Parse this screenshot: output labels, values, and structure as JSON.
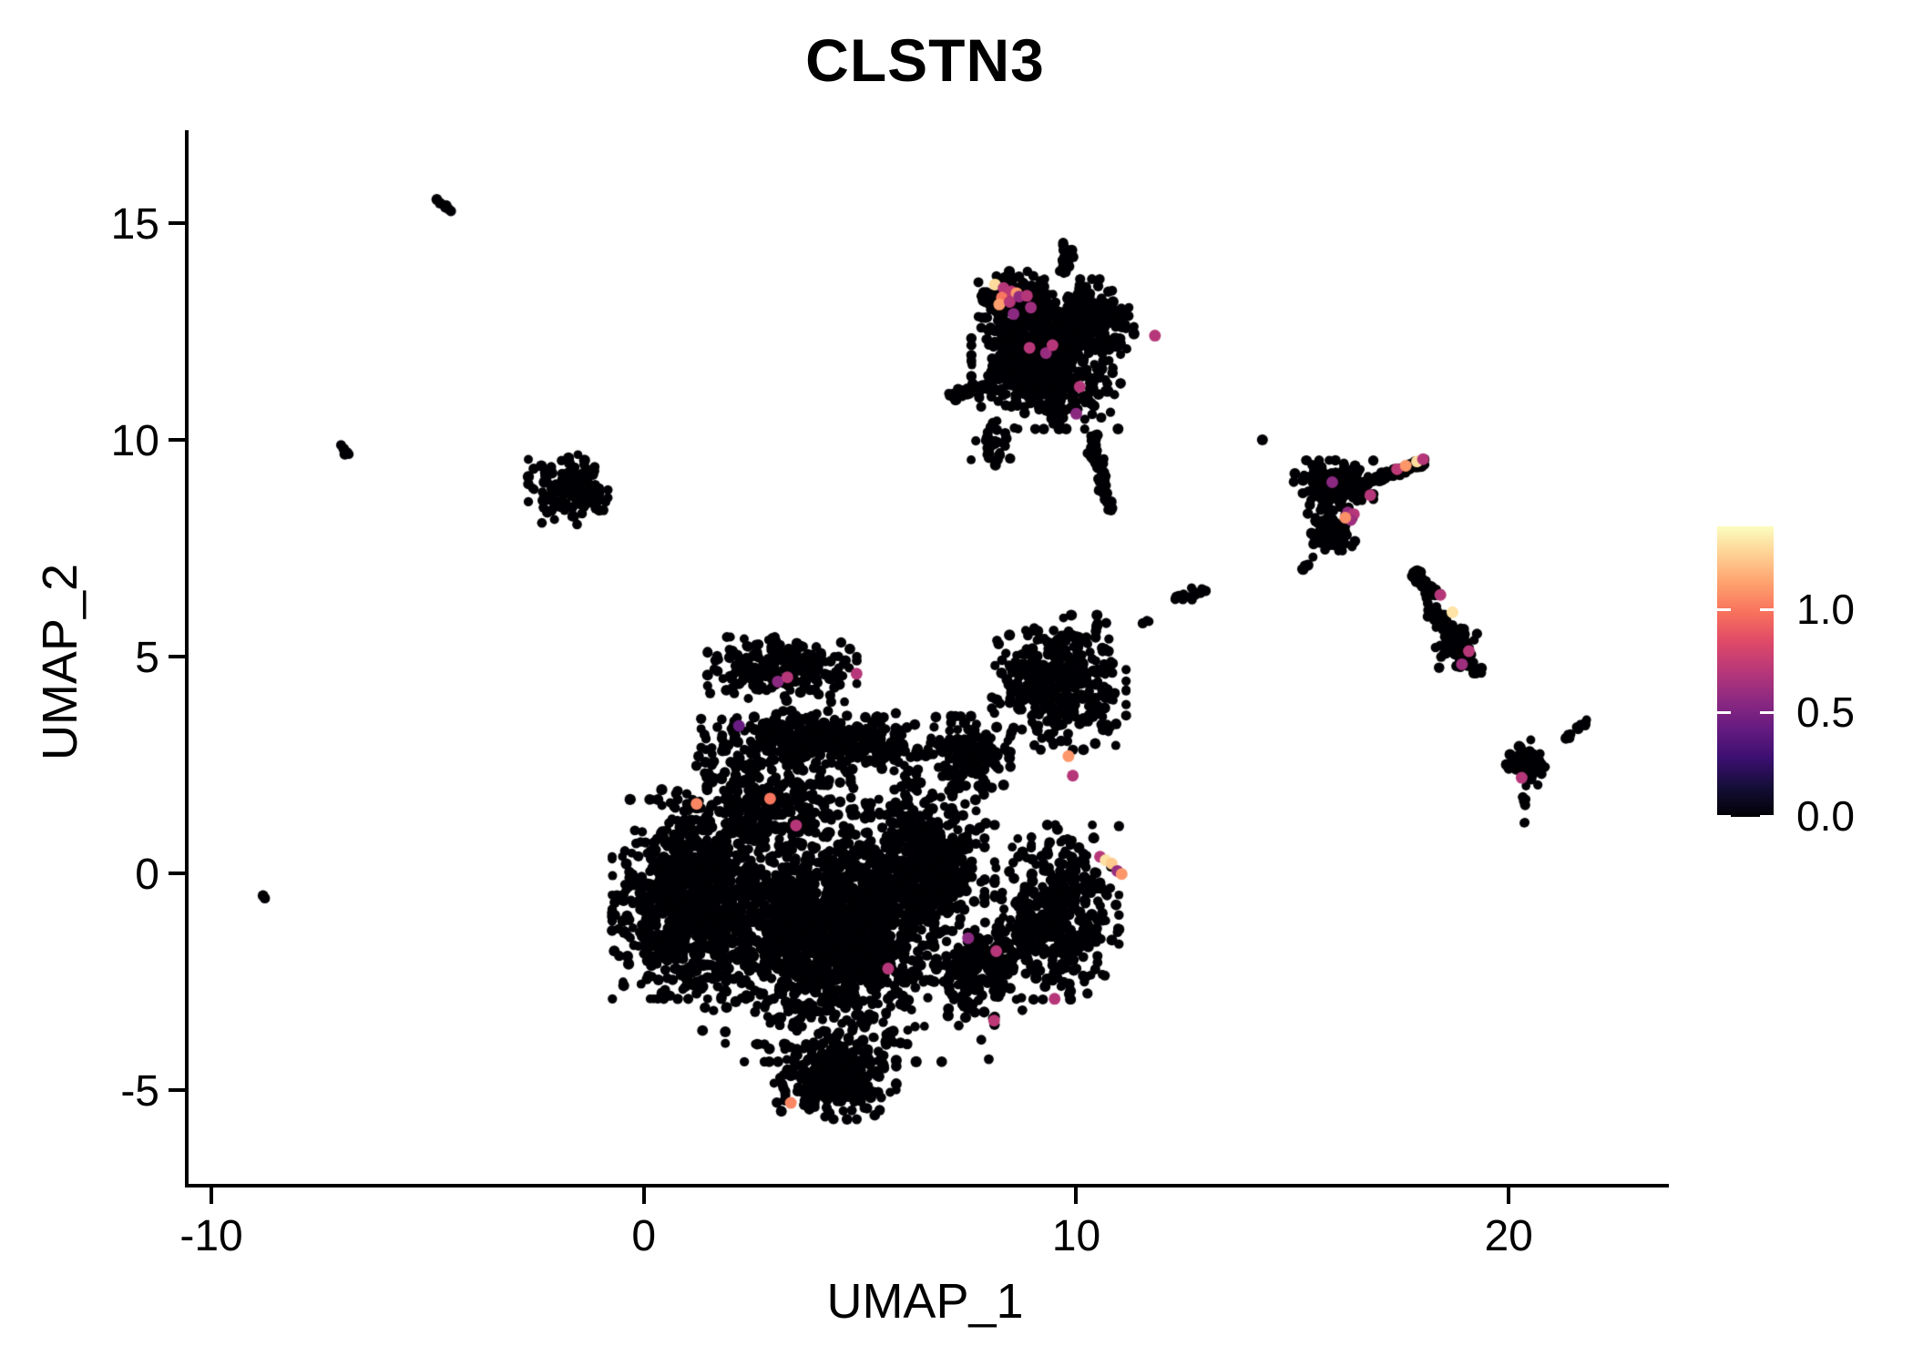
{
  "chart_data": {
    "type": "scatter",
    "title": "CLSTN3",
    "xlabel": "UMAP_1",
    "ylabel": "UMAP_2",
    "xlim": [
      -10.57,
      23.62
    ],
    "ylim": [
      -7.21,
      17.14
    ],
    "x_ticks": [
      {
        "value": -10,
        "label": "-10"
      },
      {
        "value": 0,
        "label": "0"
      },
      {
        "value": 10,
        "label": "10"
      },
      {
        "value": 20,
        "label": "20"
      }
    ],
    "y_ticks": [
      {
        "value": -5,
        "label": "-5"
      },
      {
        "value": 0,
        "label": "0"
      },
      {
        "value": 5,
        "label": "5"
      },
      {
        "value": 10,
        "label": "10"
      },
      {
        "value": 15,
        "label": "15"
      }
    ],
    "grid": false,
    "legend_position": "right",
    "point_color": "#000004",
    "point_radius_px": 5.5,
    "highlight_radius_px": 6.5,
    "colorbar": {
      "vmin": 0.0,
      "vmax": 1.405,
      "tick_values": [
        0.0,
        0.5,
        1.0
      ],
      "tick_labels": [
        "0.0",
        "0.5",
        "1.0"
      ],
      "colormap": "magma",
      "stops": [
        [
          0.0,
          "#000004"
        ],
        [
          0.1,
          "#140e36"
        ],
        [
          0.2,
          "#3b0f70"
        ],
        [
          0.3,
          "#641a80"
        ],
        [
          0.4,
          "#8c2981"
        ],
        [
          0.5,
          "#b73779"
        ],
        [
          0.6,
          "#de4968"
        ],
        [
          0.7,
          "#f7705c"
        ],
        [
          0.8,
          "#fe9f6d"
        ],
        [
          0.9,
          "#fecf92"
        ],
        [
          1.0,
          "#fcfdbf"
        ]
      ]
    },
    "seed": 20,
    "clusters": [
      {
        "t": "g",
        "name": "central-hat",
        "x": 3.2,
        "y": 4.7,
        "rx": 1.5,
        "ry": 0.65,
        "n": 240
      },
      {
        "t": "g",
        "name": "central-band",
        "x": 4.2,
        "y": 3.05,
        "rx": 2.5,
        "ry": 0.6,
        "n": 430
      },
      {
        "t": "g",
        "name": "central-left-lobe",
        "x": 1.05,
        "y": -0.6,
        "rx": 1.55,
        "ry": 2.0,
        "n": 850
      },
      {
        "t": "g",
        "name": "central-core",
        "x": 4.3,
        "y": -1.3,
        "rx": 2.1,
        "ry": 2.3,
        "n": 1150
      },
      {
        "t": "g",
        "name": "central-bottom-tail",
        "x": 4.4,
        "y": -4.7,
        "rx": 1.25,
        "ry": 0.85,
        "n": 280
      },
      {
        "t": "g",
        "name": "central-right-strip",
        "x": 6.5,
        "y": 0.2,
        "rx": 1.2,
        "ry": 1.9,
        "n": 520
      },
      {
        "t": "g",
        "name": "central-mid-fill",
        "x": 2.6,
        "y": 1.7,
        "rx": 1.9,
        "ry": 1.0,
        "n": 250
      },
      {
        "t": "g",
        "name": "right-ear",
        "x": 9.55,
        "y": -0.9,
        "rx": 1.25,
        "ry": 1.75,
        "n": 430
      },
      {
        "t": "g",
        "name": "ear-bridge",
        "x": 7.8,
        "y": -2.2,
        "rx": 0.9,
        "ry": 1.0,
        "n": 200
      },
      {
        "t": "g",
        "name": "upper-right-lobe",
        "x": 9.6,
        "y": 4.4,
        "rx": 1.35,
        "ry": 1.35,
        "n": 400
      },
      {
        "t": "g",
        "name": "neck",
        "x": 7.5,
        "y": 2.7,
        "rx": 0.85,
        "ry": 0.8,
        "n": 150
      },
      {
        "t": "g",
        "name": "central-sparse-halo",
        "x": 4.2,
        "y": -0.9,
        "rx": 3.4,
        "ry": 3.0,
        "n": 420
      },
      {
        "t": "l",
        "name": "mid-streak",
        "x": 12.15,
        "y": 6.2,
        "x2": 13.0,
        "y2": 6.6,
        "w": 0.12,
        "n": 16
      },
      {
        "t": "g",
        "name": "mid-dots",
        "x": 11.6,
        "y": 5.8,
        "rx": 0.15,
        "ry": 0.15,
        "n": 3
      },
      {
        "t": "g",
        "name": "top-cluster-main",
        "x": 9.3,
        "y": 11.8,
        "rx": 1.5,
        "ry": 1.35,
        "n": 640
      },
      {
        "t": "g",
        "name": "top-cluster-left-wing",
        "x": 8.6,
        "y": 13.25,
        "rx": 0.75,
        "ry": 0.55,
        "n": 170
      },
      {
        "t": "g",
        "name": "top-cluster-right",
        "x": 10.3,
        "y": 12.9,
        "rx": 0.9,
        "ry": 0.7,
        "n": 180
      },
      {
        "t": "l",
        "name": "top-cluster-hat",
        "x": 9.7,
        "y": 13.9,
        "x2": 9.8,
        "y2": 14.55,
        "w": 0.15,
        "n": 26
      },
      {
        "t": "l",
        "name": "top-cluster-left-trail",
        "x": 7.1,
        "y": 10.95,
        "x2": 8.35,
        "y2": 11.55,
        "w": 0.15,
        "n": 55
      },
      {
        "t": "l",
        "name": "top-cluster-bottom-tail",
        "x": 10.35,
        "y": 10.1,
        "x2": 10.8,
        "y2": 8.35,
        "w": 0.14,
        "n": 60
      },
      {
        "t": "g",
        "name": "top-cluster-sparse",
        "x": 8.1,
        "y": 9.9,
        "rx": 0.5,
        "ry": 0.5,
        "n": 30
      },
      {
        "t": "g",
        "name": "left-cluster",
        "x": -1.75,
        "y": 8.85,
        "rx": 0.8,
        "ry": 0.7,
        "n": 150
      },
      {
        "t": "l",
        "name": "left-dots",
        "x": -7.0,
        "y": 9.85,
        "x2": -6.7,
        "y2": 9.5,
        "w": 0.08,
        "n": 5
      },
      {
        "t": "l",
        "name": "topleft-streak",
        "x": -4.9,
        "y": 15.6,
        "x2": -4.45,
        "y2": 15.25,
        "w": 0.08,
        "n": 7
      },
      {
        "t": "g",
        "name": "left-outlier",
        "x": -8.8,
        "y": -0.55,
        "rx": 0.05,
        "ry": 0.05,
        "n": 2
      },
      {
        "t": "g",
        "name": "far-outlier",
        "x": 14.3,
        "y": 10.0,
        "rx": 0.03,
        "ry": 0.03,
        "n": 1
      },
      {
        "t": "g",
        "name": "right-A-main",
        "x": 15.95,
        "y": 8.95,
        "rx": 0.8,
        "ry": 0.5,
        "n": 190
      },
      {
        "t": "l",
        "name": "right-A-arm",
        "x": 16.9,
        "y": 9.05,
        "x2": 18.05,
        "y2": 9.5,
        "w": 0.12,
        "n": 55
      },
      {
        "t": "g",
        "name": "right-A-lower",
        "x": 15.85,
        "y": 7.95,
        "rx": 0.6,
        "ry": 0.45,
        "n": 70
      },
      {
        "t": "l",
        "name": "right-A-drip",
        "x": 15.45,
        "y": 7.3,
        "x2": 15.2,
        "y2": 6.9,
        "w": 0.08,
        "n": 6
      },
      {
        "t": "l",
        "name": "right-B-snake-1",
        "x": 17.75,
        "y": 6.95,
        "x2": 18.35,
        "y2": 6.4,
        "w": 0.18,
        "n": 45
      },
      {
        "t": "l",
        "name": "right-B-snake-2",
        "x": 18.2,
        "y": 6.1,
        "x2": 18.6,
        "y2": 5.6,
        "w": 0.2,
        "n": 50
      },
      {
        "t": "g",
        "name": "right-B-blob",
        "x": 18.75,
        "y": 5.25,
        "rx": 0.45,
        "ry": 0.5,
        "n": 90
      },
      {
        "t": "l",
        "name": "right-B-tip",
        "x": 19.0,
        "y": 4.9,
        "x2": 19.35,
        "y2": 4.6,
        "w": 0.12,
        "n": 18
      },
      {
        "t": "g",
        "name": "right-C-blob",
        "x": 20.4,
        "y": 2.5,
        "rx": 0.42,
        "ry": 0.5,
        "n": 60
      },
      {
        "t": "l",
        "name": "right-C-streak",
        "x": 21.3,
        "y": 3.1,
        "x2": 21.8,
        "y2": 3.5,
        "w": 0.07,
        "n": 11
      },
      {
        "t": "l",
        "name": "right-C-drip",
        "x": 20.32,
        "y": 2.0,
        "x2": 20.38,
        "y2": 1.15,
        "w": 0.05,
        "n": 8
      }
    ],
    "highlights": [
      {
        "x": 8.12,
        "y": 13.58,
        "v": 1.3
      },
      {
        "x": 8.32,
        "y": 13.5,
        "v": 0.7
      },
      {
        "x": 8.5,
        "y": 13.42,
        "v": 0.72
      },
      {
        "x": 8.62,
        "y": 13.38,
        "v": 1.1
      },
      {
        "x": 8.28,
        "y": 13.28,
        "v": 1.0
      },
      {
        "x": 8.22,
        "y": 13.12,
        "v": 1.12
      },
      {
        "x": 8.46,
        "y": 13.18,
        "v": 0.7
      },
      {
        "x": 8.68,
        "y": 13.3,
        "v": 0.58
      },
      {
        "x": 8.86,
        "y": 13.32,
        "v": 0.7
      },
      {
        "x": 8.55,
        "y": 12.9,
        "v": 0.56
      },
      {
        "x": 8.95,
        "y": 13.05,
        "v": 0.62
      },
      {
        "x": 8.92,
        "y": 12.12,
        "v": 0.7
      },
      {
        "x": 9.3,
        "y": 12.0,
        "v": 0.6
      },
      {
        "x": 9.45,
        "y": 12.18,
        "v": 0.7
      },
      {
        "x": 10.08,
        "y": 11.22,
        "v": 0.7
      },
      {
        "x": 10.0,
        "y": 10.6,
        "v": 0.56
      },
      {
        "x": 11.82,
        "y": 12.4,
        "v": 0.7
      },
      {
        "x": 3.1,
        "y": 4.42,
        "v": 0.56
      },
      {
        "x": 3.32,
        "y": 4.52,
        "v": 0.7
      },
      {
        "x": 4.92,
        "y": 4.6,
        "v": 0.7
      },
      {
        "x": 2.2,
        "y": 3.4,
        "v": 0.44
      },
      {
        "x": 1.22,
        "y": 1.6,
        "v": 1.05
      },
      {
        "x": 2.92,
        "y": 1.72,
        "v": 1.0
      },
      {
        "x": 3.52,
        "y": 1.1,
        "v": 0.7
      },
      {
        "x": 5.65,
        "y": -2.2,
        "v": 0.7
      },
      {
        "x": 7.5,
        "y": -1.5,
        "v": 0.56
      },
      {
        "x": 8.15,
        "y": -1.8,
        "v": 0.7
      },
      {
        "x": 9.5,
        "y": -2.9,
        "v": 0.7
      },
      {
        "x": 8.1,
        "y": -3.4,
        "v": 0.72
      },
      {
        "x": 3.4,
        "y": -5.3,
        "v": 1.05
      },
      {
        "x": 10.55,
        "y": 0.38,
        "v": 0.7
      },
      {
        "x": 10.68,
        "y": 0.3,
        "v": 1.32
      },
      {
        "x": 10.82,
        "y": 0.22,
        "v": 1.25
      },
      {
        "x": 10.95,
        "y": 0.05,
        "v": 0.6
      },
      {
        "x": 11.05,
        "y": -0.02,
        "v": 1.1
      },
      {
        "x": 9.82,
        "y": 2.7,
        "v": 1.1
      },
      {
        "x": 9.92,
        "y": 2.25,
        "v": 0.7
      },
      {
        "x": 15.92,
        "y": 9.02,
        "v": 0.56
      },
      {
        "x": 16.8,
        "y": 8.72,
        "v": 0.7
      },
      {
        "x": 17.42,
        "y": 9.32,
        "v": 0.72
      },
      {
        "x": 17.62,
        "y": 9.4,
        "v": 1.1
      },
      {
        "x": 17.88,
        "y": 9.5,
        "v": 1.3
      },
      {
        "x": 18.02,
        "y": 9.55,
        "v": 0.7
      },
      {
        "x": 16.28,
        "y": 8.32,
        "v": 0.58
      },
      {
        "x": 16.42,
        "y": 8.28,
        "v": 0.7
      },
      {
        "x": 16.35,
        "y": 8.15,
        "v": 0.62
      },
      {
        "x": 16.22,
        "y": 8.2,
        "v": 1.08
      },
      {
        "x": 18.42,
        "y": 6.42,
        "v": 0.7
      },
      {
        "x": 18.7,
        "y": 6.02,
        "v": 1.33
      },
      {
        "x": 19.08,
        "y": 5.12,
        "v": 0.7
      },
      {
        "x": 18.92,
        "y": 4.82,
        "v": 0.62
      },
      {
        "x": 20.3,
        "y": 2.2,
        "v": 0.7
      }
    ]
  }
}
